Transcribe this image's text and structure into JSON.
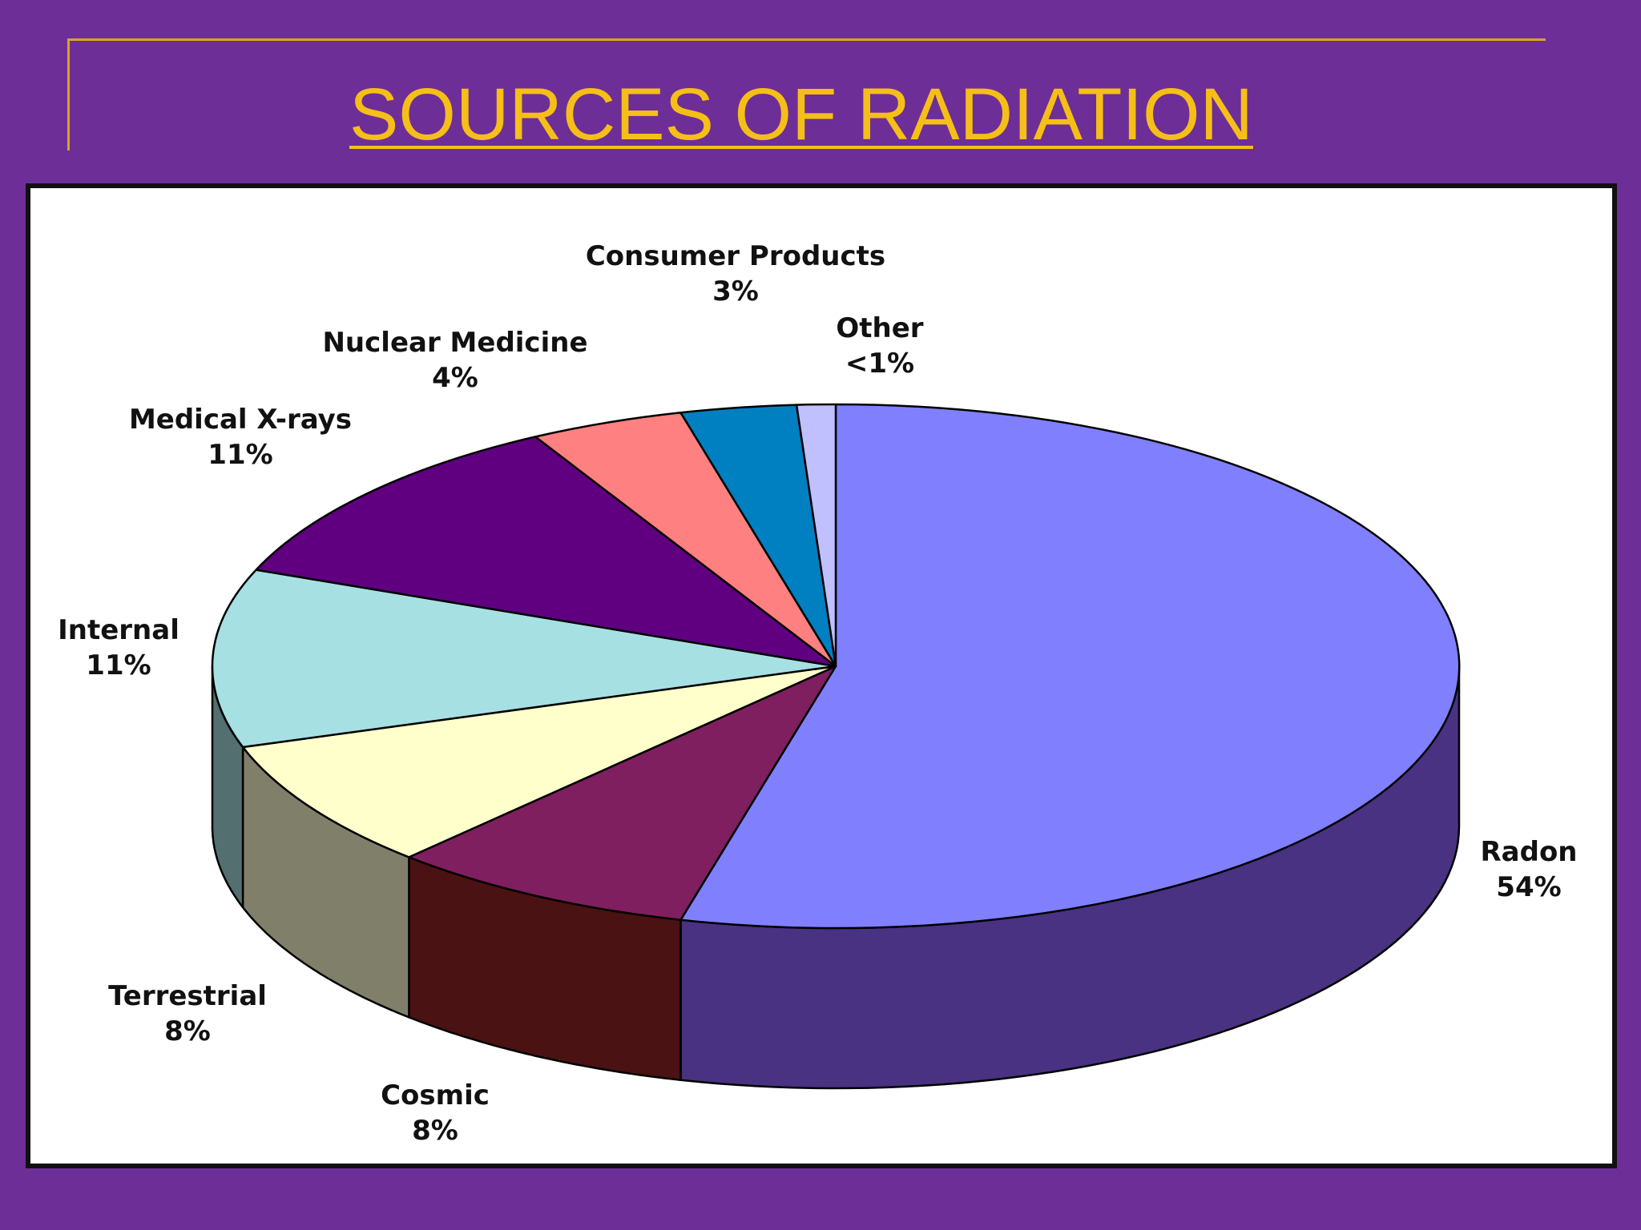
{
  "slide": {
    "title": "SOURCES  OF RADIATION"
  },
  "colors": {
    "background": "#6e2e97",
    "accent": "#d9a41f",
    "title": "#f5bf18",
    "panel": "#ffffff"
  },
  "chart_data": {
    "type": "pie",
    "title": "",
    "style": "3d-exploded-perspective",
    "start": "12 o'clock",
    "direction": "clockwise",
    "slices": [
      {
        "label": "Radon",
        "display": "54%",
        "value": 54,
        "color": "#8080ff",
        "side_color": "#483281"
      },
      {
        "label": "Cosmic",
        "display": "8%",
        "value": 8,
        "color": "#7f1f5f",
        "side_color": "#4a1212"
      },
      {
        "label": "Terrestrial",
        "display": "8%",
        "value": 8,
        "color": "#ffffcc",
        "side_color": "#80806a"
      },
      {
        "label": "Internal",
        "display": "11%",
        "value": 11,
        "color": "#a6e0e3",
        "side_color": "#536f70"
      },
      {
        "label": "Medical  X-rays",
        "display": "11%",
        "value": 11,
        "color": "#600080",
        "side_color": "#300040"
      },
      {
        "label": "Nuclear Medicine",
        "display": "4%",
        "value": 4,
        "color": "#ff8080",
        "side_color": "#804040"
      },
      {
        "label": "Consumer Products",
        "display": "3%",
        "value": 3,
        "color": "#0080c0",
        "side_color": "#004060"
      },
      {
        "label": "Other",
        "display": "<1%",
        "value": 1,
        "color": "#c0c0ff",
        "side_color": "#606080"
      }
    ]
  }
}
